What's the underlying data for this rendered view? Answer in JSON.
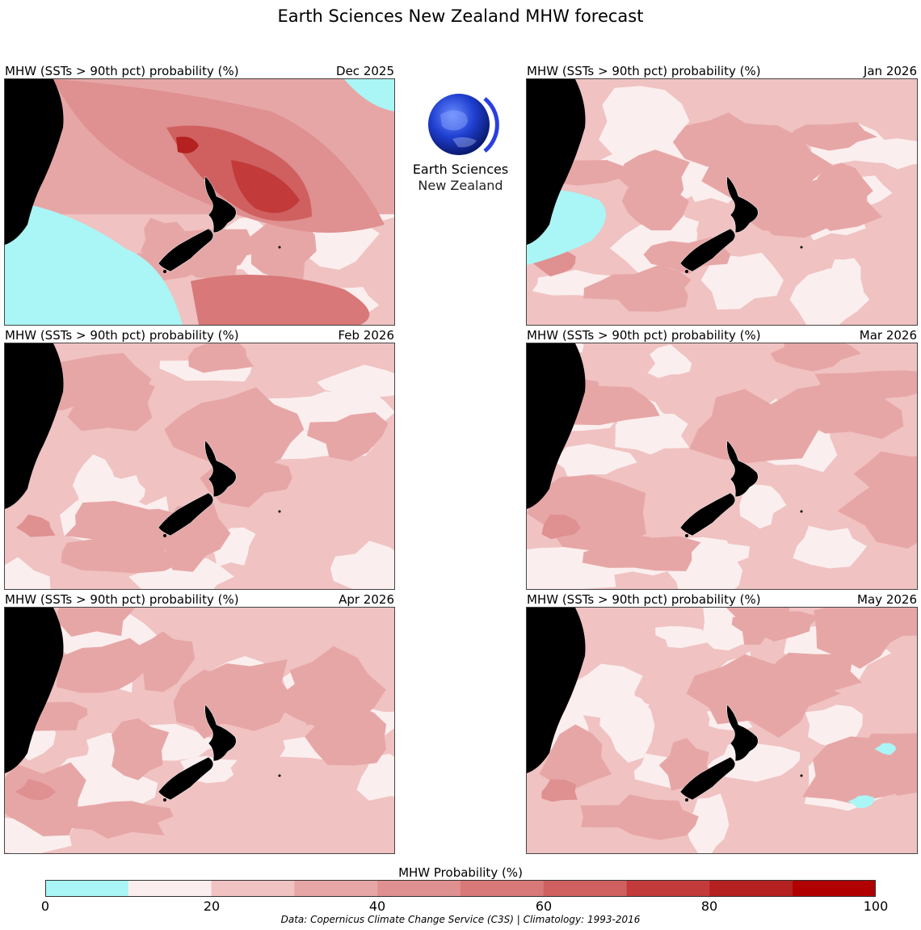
{
  "title": "Earth Sciences New Zealand MHW forecast",
  "panel_label": "MHW (SSTs > 90th pct) probability (%)",
  "panels": [
    {
      "label": "MHW (SSTs > 90th pct) probability (%)",
      "date": "Dec 2025",
      "level": 0.62
    },
    {
      "label": "MHW (SSTs > 90th pct) probability (%)",
      "date": "Jan 2026",
      "level": 0.32
    },
    {
      "label": "MHW (SSTs > 90th pct) probability (%)",
      "date": "Feb 2026",
      "level": 0.28
    },
    {
      "label": "MHW (SSTs > 90th pct) probability (%)",
      "date": "Mar 2026",
      "level": 0.27
    },
    {
      "label": "MHW (SSTs > 90th pct) probability (%)",
      "date": "Apr 2026",
      "level": 0.28
    },
    {
      "label": "MHW (SSTs > 90th pct) probability (%)",
      "date": "May 2026",
      "level": 0.3
    }
  ],
  "logo": {
    "line1": "Earth Sciences",
    "line2": "New Zealand",
    "icon": "globe-icon"
  },
  "colorbar": {
    "label": "MHW Probability (%)",
    "bins": [
      {
        "from": 0,
        "to": 10,
        "color": "#aaf5f5"
      },
      {
        "from": 10,
        "to": 20,
        "color": "#fbeeee"
      },
      {
        "from": 20,
        "to": 30,
        "color": "#f0c2c2"
      },
      {
        "from": 30,
        "to": 40,
        "color": "#e7a6a6"
      },
      {
        "from": 40,
        "to": 50,
        "color": "#df9090"
      },
      {
        "from": 50,
        "to": 60,
        "color": "#d87878"
      },
      {
        "from": 60,
        "to": 70,
        "color": "#d06060"
      },
      {
        "from": 70,
        "to": 80,
        "color": "#c33a3a"
      },
      {
        "from": 80,
        "to": 90,
        "color": "#b52020"
      },
      {
        "from": 90,
        "to": 100,
        "color": "#b00000"
      }
    ],
    "ticks": [
      "0",
      "20",
      "40",
      "60",
      "80",
      "100"
    ]
  },
  "credit": "Data: Copernicus Climate Change Service (C3S) | Climatology: 1993-2016"
}
